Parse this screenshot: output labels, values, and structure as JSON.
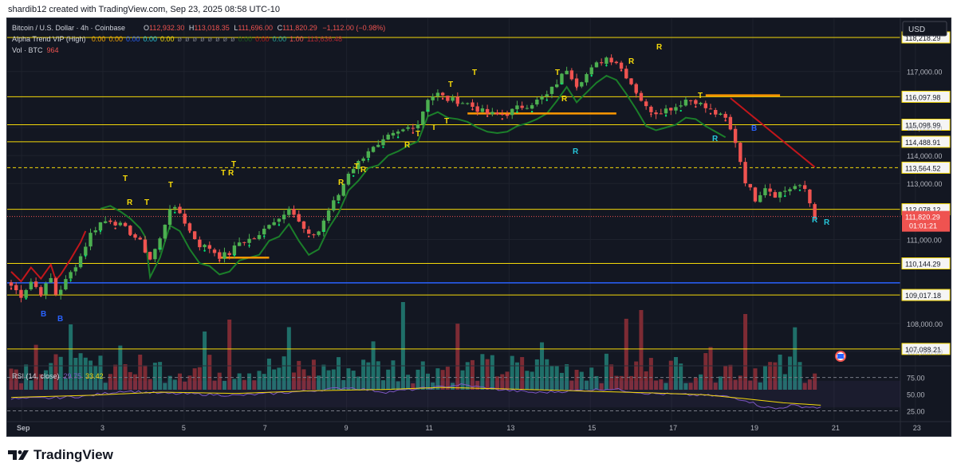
{
  "caption": "shardib12 created with TradingView.com, Sep 23, 2025 08:58 UTC-10",
  "currency": "USD",
  "legend": {
    "symbol": "Bitcoin / U.S. Dollar · 4h · Coinbase",
    "o_label": "O",
    "o": "112,932.30",
    "h_label": "H",
    "h": "113,018.35",
    "l_label": "L",
    "l": "111,696.00",
    "c_label": "C",
    "c": "111,820.29",
    "change": "−1,112.00 (−0.98%)",
    "alpha_name": "Alpha Trend VIP (High)",
    "alpha_values": [
      {
        "v": "0.00",
        "color": "#f7a600"
      },
      {
        "v": "0.00",
        "color": "#f7a600"
      },
      {
        "v": "0.00",
        "color": "#2962ff"
      },
      {
        "v": "0.00",
        "color": "#26c6da"
      },
      {
        "v": "0.00",
        "color": "#f5d90a"
      },
      {
        "v": "ø",
        "color": "#787b86"
      },
      {
        "v": "ø",
        "color": "#787b86"
      },
      {
        "v": "ø",
        "color": "#787b86"
      },
      {
        "v": "ø",
        "color": "#787b86"
      },
      {
        "v": "ø",
        "color": "#787b86"
      },
      {
        "v": "ø",
        "color": "#787b86"
      },
      {
        "v": "ø",
        "color": "#787b86"
      },
      {
        "v": "ø",
        "color": "#787b86"
      },
      {
        "v": "0.00",
        "color": "#1b5e20"
      },
      {
        "v": "0.00",
        "color": "#b71c1c"
      },
      {
        "v": "0.00",
        "color": "#26a69a"
      },
      {
        "v": "1.00",
        "color": "#ef5350"
      },
      {
        "v": "113,636.48",
        "color": "#b22833"
      }
    ],
    "vol_label": "Vol · BTC",
    "vol_value": "964",
    "rsi_label": "RSI (14, close)",
    "rsi_value": "29.75",
    "rsi_ma": "33.42"
  },
  "colors": {
    "up": "#4caf50",
    "down": "#ef5350",
    "vol_up": "#1f6f69",
    "vol_down": "#7d2b34",
    "hline": "#f5d90a",
    "blue_line": "#2962ff",
    "trend_green": "#1b7e2a",
    "trend_red": "#c2161b",
    "trend_orange": "#ff9800",
    "rsi": "#7e57c2",
    "rsi_ma": "#f5d90a"
  },
  "chart_data": {
    "type": "candlestick",
    "timeframe": "4h",
    "ylim": [
      106600,
      118900
    ],
    "x_ticks": [
      {
        "label": "Sep",
        "x": -5
      },
      {
        "label": "3",
        "x": 16
      },
      {
        "label": "5",
        "x": 37
      },
      {
        "label": "7",
        "x": 58
      },
      {
        "label": "9",
        "x": 79
      },
      {
        "label": "11",
        "x": 100
      },
      {
        "label": "13",
        "x": 121
      },
      {
        "label": "15",
        "x": 142
      },
      {
        "label": "17",
        "x": 163
      },
      {
        "label": "19",
        "x": 184
      },
      {
        "label": "21",
        "x": 205
      },
      {
        "label": "23",
        "x": 226
      }
    ],
    "y_ticks": [
      "107,000.00",
      "108,000.00",
      "111,000.00",
      "113,000.00",
      "114,000.00",
      "115,000.00",
      "117,000.00"
    ],
    "y_tick_values": [
      107000,
      108000,
      111000,
      113000,
      114000,
      115000,
      117000
    ],
    "levels": [
      {
        "value": 118218.29,
        "label": "118,218.29",
        "style": "solid"
      },
      {
        "value": 116097.98,
        "label": "116,097.98",
        "style": "solid"
      },
      {
        "value": 115098.99,
        "label": "115,098.99",
        "style": "solid"
      },
      {
        "value": 114488.91,
        "label": "114,488.91",
        "style": "solid"
      },
      {
        "value": 113564.52,
        "label": "113,564.52",
        "style": "dashed"
      },
      {
        "value": 112078.12,
        "label": "112,078.12",
        "style": "solid"
      },
      {
        "value": 110144.29,
        "label": "110,144.29",
        "style": "solid"
      },
      {
        "value": 109017.18,
        "label": "109,017.18",
        "style": "solid"
      },
      {
        "value": 107088.21,
        "label": "107,088.21",
        "style": "solid"
      }
    ],
    "last_price": {
      "value": 111820.29,
      "label": "111,820.29",
      "countdown": "01:01:21"
    },
    "blue_level": 109450,
    "close_anchors": [
      [
        0,
        109350
      ],
      [
        2,
        109000
      ],
      [
        4,
        109500
      ],
      [
        6,
        109100
      ],
      [
        8,
        109600
      ],
      [
        9,
        109050
      ],
      [
        10,
        109250
      ],
      [
        12,
        109800
      ],
      [
        14,
        110400
      ],
      [
        16,
        111200
      ],
      [
        18,
        111600
      ],
      [
        20,
        111700
      ],
      [
        22,
        111500
      ],
      [
        24,
        111250
      ],
      [
        26,
        110900
      ],
      [
        28,
        110300
      ],
      [
        30,
        111000
      ],
      [
        32,
        112150
      ],
      [
        34,
        111950
      ],
      [
        36,
        111300
      ],
      [
        38,
        110800
      ],
      [
        40,
        110700
      ],
      [
        42,
        110400
      ],
      [
        44,
        110500
      ],
      [
        46,
        110900
      ],
      [
        48,
        111000
      ],
      [
        50,
        111100
      ],
      [
        52,
        111600
      ],
      [
        54,
        111750
      ],
      [
        56,
        112200
      ],
      [
        58,
        111600
      ],
      [
        60,
        111100
      ],
      [
        62,
        111300
      ],
      [
        64,
        112050
      ],
      [
        66,
        112600
      ],
      [
        68,
        113400
      ],
      [
        70,
        113750
      ],
      [
        72,
        114200
      ],
      [
        74,
        114300
      ],
      [
        76,
        114650
      ],
      [
        78,
        114800
      ],
      [
        80,
        115000
      ],
      [
        82,
        115150
      ],
      [
        84,
        116050
      ],
      [
        86,
        116200
      ],
      [
        88,
        116000
      ],
      [
        90,
        115950
      ],
      [
        92,
        115850
      ],
      [
        94,
        115650
      ],
      [
        96,
        115500
      ],
      [
        98,
        115450
      ],
      [
        100,
        115500
      ],
      [
        102,
        115700
      ],
      [
        104,
        115800
      ],
      [
        106,
        115950
      ],
      [
        108,
        116150
      ],
      [
        110,
        116600
      ],
      [
        112,
        117100
      ],
      [
        114,
        116550
      ],
      [
        116,
        116900
      ],
      [
        118,
        117250
      ],
      [
        120,
        117500
      ],
      [
        122,
        117350
      ],
      [
        124,
        116850
      ],
      [
        126,
        116300
      ],
      [
        128,
        115700
      ],
      [
        130,
        115550
      ],
      [
        132,
        115650
      ],
      [
        134,
        115750
      ],
      [
        136,
        116000
      ],
      [
        138,
        115950
      ],
      [
        140,
        115700
      ],
      [
        142,
        115500
      ],
      [
        144,
        115300
      ],
      [
        146,
        114500
      ],
      [
        148,
        113100
      ],
      [
        150,
        112450
      ],
      [
        152,
        112900
      ],
      [
        154,
        112600
      ],
      [
        156,
        112750
      ],
      [
        158,
        112900
      ],
      [
        160,
        112800
      ],
      [
        162,
        111820
      ]
    ],
    "rsi_ticks": [
      75,
      50,
      25
    ],
    "rsi_anchors": [
      [
        0,
        43
      ],
      [
        10,
        44
      ],
      [
        20,
        47
      ],
      [
        30,
        55
      ],
      [
        40,
        51
      ],
      [
        50,
        50
      ],
      [
        60,
        48
      ],
      [
        70,
        51
      ],
      [
        80,
        55
      ],
      [
        90,
        60
      ],
      [
        100,
        53
      ],
      [
        105,
        56
      ],
      [
        115,
        61
      ],
      [
        120,
        64
      ],
      [
        130,
        57
      ],
      [
        140,
        52
      ],
      [
        150,
        55
      ],
      [
        160,
        58
      ],
      [
        170,
        51
      ],
      [
        180,
        49
      ],
      [
        190,
        47
      ],
      [
        196,
        41
      ],
      [
        200,
        32
      ],
      [
        204,
        28
      ],
      [
        208,
        33
      ],
      [
        212,
        31
      ],
      [
        216,
        29.75
      ]
    ],
    "rsi_ma_anchors": [
      [
        0,
        45
      ],
      [
        20,
        48
      ],
      [
        40,
        53
      ],
      [
        60,
        51
      ],
      [
        80,
        55
      ],
      [
        100,
        57
      ],
      [
        115,
        60
      ],
      [
        130,
        58
      ],
      [
        150,
        55
      ],
      [
        170,
        52
      ],
      [
        185,
        49
      ],
      [
        196,
        43
      ],
      [
        206,
        37
      ],
      [
        216,
        33.42
      ]
    ],
    "signals": [
      {
        "t": "T",
        "x": 153,
        "y": 226
      },
      {
        "t": "R",
        "x": 158,
        "y": 256
      },
      {
        "t": "T",
        "x": 180,
        "y": 256
      },
      {
        "t": "T",
        "x": 210,
        "y": 234
      },
      {
        "t": "T",
        "x": 276,
        "y": 219
      },
      {
        "t": "R",
        "x": 285,
        "y": 219
      },
      {
        "t": "T",
        "x": 289,
        "y": 208
      },
      {
        "t": "R",
        "x": 423,
        "y": 231
      },
      {
        "t": "T",
        "x": 443,
        "y": 211
      },
      {
        "t": "R",
        "x": 451,
        "y": 215
      },
      {
        "t": "R",
        "x": 506,
        "y": 184
      },
      {
        "t": "T",
        "x": 520,
        "y": 170
      },
      {
        "t": "T",
        "x": 540,
        "y": 162
      },
      {
        "t": "T",
        "x": 556,
        "y": 154
      },
      {
        "t": "T",
        "x": 561,
        "y": 108
      },
      {
        "t": "T",
        "x": 591,
        "y": 93
      },
      {
        "t": "T",
        "x": 695,
        "y": 93
      },
      {
        "t": "R",
        "x": 703,
        "y": 126
      },
      {
        "t": "R",
        "x": 787,
        "y": 79
      },
      {
        "t": "R",
        "x": 822,
        "y": 61
      },
      {
        "t": "T",
        "x": 874,
        "y": 122
      }
    ],
    "signals_below": [
      {
        "t": "R",
        "x": 717,
        "y": 192
      },
      {
        "t": "R",
        "x": 892,
        "y": 176
      },
      {
        "t": "B",
        "x": 941,
        "y": 163
      },
      {
        "t": "R",
        "x": 1017,
        "y": 278
      },
      {
        "t": "R",
        "x": 1032,
        "y": 281
      },
      {
        "t": "B",
        "x": 50,
        "y": 396
      },
      {
        "t": "B",
        "x": 71,
        "y": 402
      }
    ]
  }
}
